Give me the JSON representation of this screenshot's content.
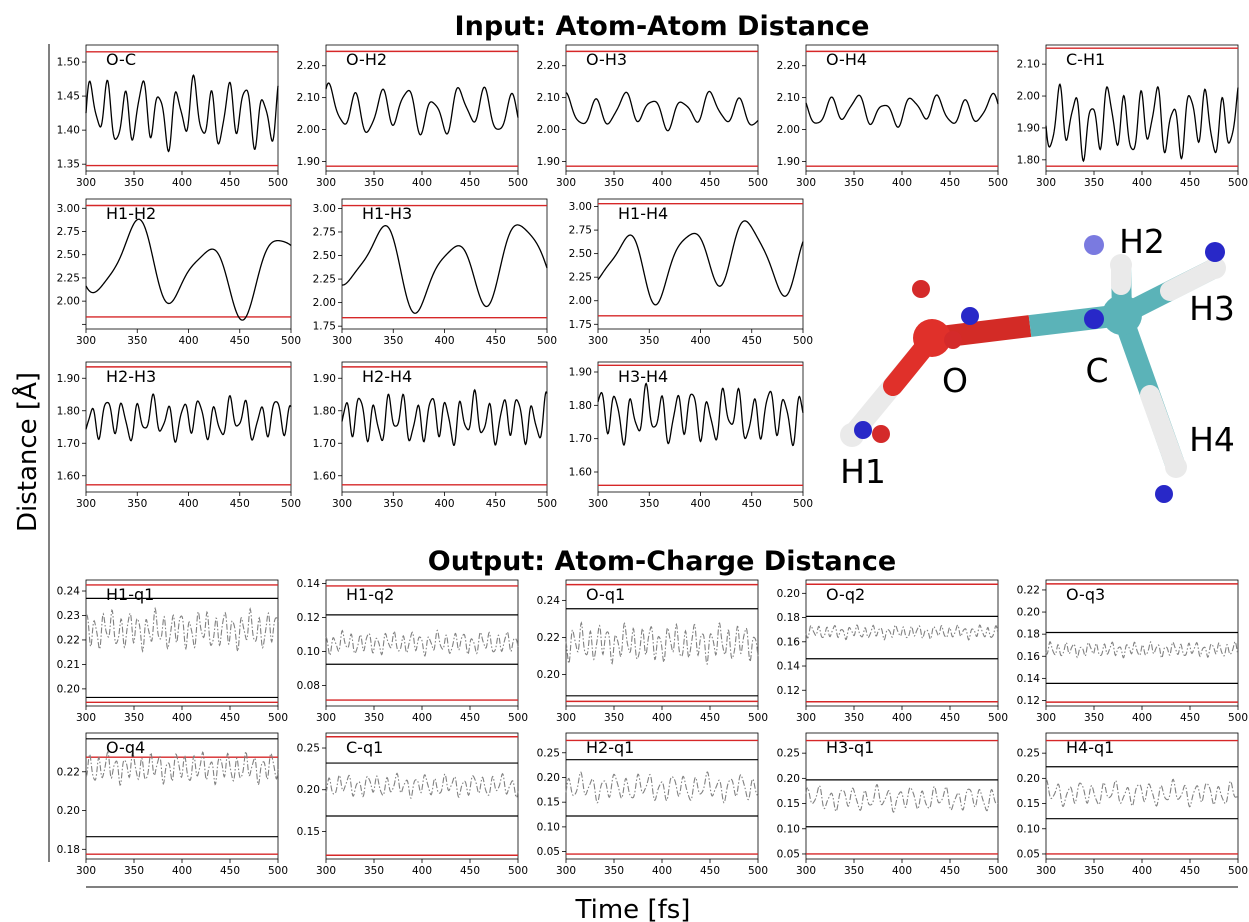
{
  "figure": {
    "input_title": "Input: Atom-Atom Distance",
    "output_title": "Output: Atom-Charge Distance",
    "ylabel": "Distance [Å]",
    "xlabel": "Time [fs]"
  },
  "colors": {
    "signal": "#000000",
    "output_signal": "#808080",
    "bounds_red": "#d62728",
    "bounds_black": "#000000"
  },
  "molecule": {
    "atom_labels": [
      "O",
      "C",
      "H1",
      "H2",
      "H3",
      "H4"
    ],
    "atom_colors": {
      "O": "#e0302a",
      "C": "#5bb3b8",
      "H": "#e8e8e8",
      "charge_blue": "#2828c8",
      "charge_red": "#d42a2a"
    }
  },
  "chart_data": [
    {
      "type": "line",
      "label": "O-C",
      "xlim": [
        300,
        500
      ],
      "ylim": [
        1.34,
        1.525
      ],
      "xticks": [
        300,
        350,
        400,
        450,
        500
      ],
      "yticks": [
        1.35,
        1.4,
        1.45,
        1.5
      ],
      "ytick_labels": [
        "1.35",
        "1.40",
        "1.45",
        "1.50"
      ],
      "red_lines": [
        1.348,
        1.515
      ],
      "black_lines": [],
      "mean": 1.425,
      "amp": 0.045,
      "period": 18,
      "series_style": "solid"
    },
    {
      "type": "line",
      "label": "O-H2",
      "xlim": [
        300,
        500
      ],
      "ylim": [
        1.87,
        2.265
      ],
      "xticks": [
        300,
        350,
        400,
        450,
        500
      ],
      "yticks": [
        1.9,
        2.0,
        2.1,
        2.2
      ],
      "ytick_labels": [
        "1.90",
        "2.00",
        "2.10",
        "2.20"
      ],
      "red_lines": [
        1.885,
        2.245
      ],
      "black_lines": [],
      "mean": 2.06,
      "amp": 0.07,
      "period": 27,
      "series_style": "solid"
    },
    {
      "type": "line",
      "label": "O-H3",
      "xlim": [
        300,
        500
      ],
      "ylim": [
        1.87,
        2.265
      ],
      "xticks": [
        300,
        350,
        400,
        450,
        500
      ],
      "yticks": [
        1.9,
        2.0,
        2.1,
        2.2
      ],
      "ytick_labels": [
        "1.90",
        "2.00",
        "2.10",
        "2.20"
      ],
      "red_lines": [
        1.885,
        2.245
      ],
      "black_lines": [],
      "mean": 2.06,
      "amp": 0.05,
      "period": 30,
      "series_style": "solid"
    },
    {
      "type": "line",
      "label": "O-H4",
      "xlim": [
        300,
        500
      ],
      "ylim": [
        1.87,
        2.265
      ],
      "xticks": [
        300,
        350,
        400,
        450,
        500
      ],
      "yticks": [
        1.9,
        2.0,
        2.1,
        2.2
      ],
      "ytick_labels": [
        "1.90",
        "2.00",
        "2.10",
        "2.20"
      ],
      "red_lines": [
        1.885,
        2.245
      ],
      "black_lines": [],
      "mean": 2.06,
      "amp": 0.045,
      "period": 28,
      "series_style": "solid"
    },
    {
      "type": "line",
      "label": "C-H1",
      "xlim": [
        300,
        500
      ],
      "ylim": [
        1.765,
        2.16
      ],
      "xticks": [
        300,
        350,
        400,
        450,
        500
      ],
      "yticks": [
        1.8,
        1.9,
        2.0,
        2.1
      ],
      "ytick_labels": [
        "1.80",
        "1.90",
        "2.00",
        "2.10"
      ],
      "red_lines": [
        1.78,
        2.15
      ],
      "black_lines": [],
      "mean": 1.92,
      "amp": 0.1,
      "period": 17,
      "series_style": "solid"
    },
    {
      "type": "line",
      "label": "H1-H2",
      "xlim": [
        300,
        500
      ],
      "ylim": [
        1.7,
        3.1
      ],
      "xticks": [
        300,
        350,
        400,
        450,
        500
      ],
      "yticks": [
        1.75,
        2.0,
        2.25,
        2.5,
        2.75,
        3.0
      ],
      "ytick_labels": [
        "",
        "2.00",
        "2.25",
        "2.50",
        "2.75",
        "3.00"
      ],
      "red_lines": [
        1.83,
        3.03
      ],
      "black_lines": [],
      "mean": 2.35,
      "amp": 0.45,
      "period": 70,
      "series_style": "solid"
    },
    {
      "type": "line",
      "label": "H1-H3",
      "xlim": [
        300,
        500
      ],
      "ylim": [
        1.72,
        3.1
      ],
      "xticks": [
        300,
        350,
        400,
        450,
        500
      ],
      "yticks": [
        1.75,
        2.0,
        2.25,
        2.5,
        2.75,
        3.0
      ],
      "ytick_labels": [
        "1.75",
        "2.00",
        "2.25",
        "2.50",
        "2.75",
        "3.00"
      ],
      "red_lines": [
        1.84,
        3.03
      ],
      "black_lines": [],
      "mean": 2.4,
      "amp": 0.45,
      "period": 68,
      "series_style": "solid"
    },
    {
      "type": "line",
      "label": "H1-H4",
      "xlim": [
        300,
        500
      ],
      "ylim": [
        1.7,
        3.08
      ],
      "xticks": [
        300,
        350,
        400,
        450,
        500
      ],
      "yticks": [
        1.75,
        2.0,
        2.25,
        2.5,
        2.75,
        3.0
      ],
      "ytick_labels": [
        "1.75",
        "2.00",
        "2.25",
        "2.50",
        "2.75",
        "3.00"
      ],
      "red_lines": [
        1.84,
        3.03
      ],
      "black_lines": [],
      "mean": 2.45,
      "amp": 0.4,
      "period": 60,
      "series_style": "solid"
    },
    {
      "type": "line",
      "label": "H2-H3",
      "xlim": [
        300,
        500
      ],
      "ylim": [
        1.55,
        1.95
      ],
      "xticks": [
        300,
        350,
        400,
        450,
        500
      ],
      "yticks": [
        1.6,
        1.7,
        1.8,
        1.9
      ],
      "ytick_labels": [
        "1.60",
        "1.70",
        "1.80",
        "1.90"
      ],
      "red_lines": [
        1.572,
        1.935
      ],
      "black_lines": [],
      "mean": 1.775,
      "amp": 0.06,
      "period": 15,
      "series_style": "solid"
    },
    {
      "type": "line",
      "label": "H2-H4",
      "xlim": [
        300,
        500
      ],
      "ylim": [
        1.55,
        1.95
      ],
      "xticks": [
        300,
        350,
        400,
        450,
        500
      ],
      "yticks": [
        1.6,
        1.7,
        1.8,
        1.9
      ],
      "ytick_labels": [
        "1.60",
        "1.70",
        "1.80",
        "1.90"
      ],
      "red_lines": [
        1.572,
        1.935
      ],
      "black_lines": [],
      "mean": 1.775,
      "amp": 0.07,
      "period": 14,
      "series_style": "solid"
    },
    {
      "type": "line",
      "label": "H3-H4",
      "xlim": [
        300,
        500
      ],
      "ylim": [
        1.54,
        1.93
      ],
      "xticks": [
        300,
        350,
        400,
        450,
        500
      ],
      "yticks": [
        1.6,
        1.7,
        1.8,
        1.9
      ],
      "ytick_labels": [
        "1.60",
        "1.70",
        "1.80",
        "1.90"
      ],
      "red_lines": [
        1.56,
        1.92
      ],
      "black_lines": [],
      "mean": 1.77,
      "amp": 0.075,
      "period": 15,
      "series_style": "solid"
    },
    {
      "type": "line",
      "label": "H1-q1",
      "xlim": [
        300,
        500
      ],
      "ylim": [
        0.193,
        0.2445
      ],
      "xticks": [
        300,
        350,
        400,
        450,
        500
      ],
      "yticks": [
        0.2,
        0.21,
        0.22,
        0.23,
        0.24
      ],
      "ytick_labels": [
        "0.20",
        "0.21",
        "0.22",
        "0.23",
        "0.24"
      ],
      "red_lines": [
        0.1945,
        0.2425
      ],
      "black_lines": [
        0.1965,
        0.237
      ],
      "mean": 0.224,
      "amp": 0.007,
      "period": 9,
      "series_style": "dashdot"
    },
    {
      "type": "line",
      "label": "H1-q2",
      "xlim": [
        300,
        500
      ],
      "ylim": [
        0.068,
        0.142
      ],
      "xticks": [
        300,
        350,
        400,
        450,
        500
      ],
      "yticks": [
        0.08,
        0.1,
        0.12,
        0.14
      ],
      "ytick_labels": [
        "0.08",
        "0.10",
        "0.12",
        "0.14"
      ],
      "red_lines": [
        0.0715,
        0.1385
      ],
      "black_lines": [
        0.0925,
        0.1215
      ],
      "mean": 0.105,
      "amp": 0.006,
      "period": 9,
      "series_style": "dashdot"
    },
    {
      "type": "line",
      "label": "O-q1",
      "xlim": [
        300,
        500
      ],
      "ylim": [
        0.183,
        0.251
      ],
      "xticks": [
        300,
        350,
        400,
        450,
        500
      ],
      "yticks": [
        0.2,
        0.22,
        0.24
      ],
      "ytick_labels": [
        "0.20",
        "0.22",
        "0.24"
      ],
      "red_lines": [
        0.1855,
        0.2485
      ],
      "black_lines": [
        0.1885,
        0.2355
      ],
      "mean": 0.217,
      "amp": 0.009,
      "period": 9,
      "series_style": "dashdot"
    },
    {
      "type": "line",
      "label": "O-q2",
      "xlim": [
        300,
        500
      ],
      "ylim": [
        0.107,
        0.211
      ],
      "xticks": [
        300,
        350,
        400,
        450,
        500
      ],
      "yticks": [
        0.12,
        0.14,
        0.16,
        0.18,
        0.2
      ],
      "ytick_labels": [
        "0.12",
        "0.14",
        "0.16",
        "0.18",
        "0.20"
      ],
      "red_lines": [
        0.1105,
        0.2075
      ],
      "black_lines": [
        0.146,
        0.181
      ],
      "mean": 0.168,
      "amp": 0.005,
      "period": 8,
      "series_style": "dashdot"
    },
    {
      "type": "line",
      "label": "O-q3",
      "xlim": [
        300,
        500
      ],
      "ylim": [
        0.115,
        0.229
      ],
      "xticks": [
        300,
        350,
        400,
        450,
        500
      ],
      "yticks": [
        0.12,
        0.14,
        0.16,
        0.18,
        0.2,
        0.22
      ],
      "ytick_labels": [
        "0.12",
        "0.14",
        "0.16",
        "0.18",
        "0.20",
        "0.22"
      ],
      "red_lines": [
        0.1185,
        0.2255
      ],
      "black_lines": [
        0.1355,
        0.1815
      ],
      "mean": 0.166,
      "amp": 0.006,
      "period": 8,
      "series_style": "dashdot"
    },
    {
      "type": "line",
      "label": "O-q4",
      "xlim": [
        300,
        500
      ],
      "ylim": [
        0.175,
        0.24
      ],
      "xticks": [
        300,
        350,
        400,
        450,
        500
      ],
      "yticks": [
        0.18,
        0.2,
        0.22
      ],
      "ytick_labels": [
        "0.18",
        "0.20",
        "0.22"
      ],
      "red_lines": [
        0.1775,
        0.2275
      ],
      "black_lines": [
        0.1865,
        0.237
      ],
      "mean": 0.222,
      "amp": 0.007,
      "period": 9,
      "series_style": "dashdot"
    },
    {
      "type": "line",
      "label": "C-q1",
      "xlim": [
        300,
        500
      ],
      "ylim": [
        0.117,
        0.268
      ],
      "xticks": [
        300,
        350,
        400,
        450,
        500
      ],
      "yticks": [
        0.15,
        0.2,
        0.25
      ],
      "ytick_labels": [
        "0.15",
        "0.20",
        "0.25"
      ],
      "red_lines": [
        0.1215,
        0.2635
      ],
      "black_lines": [
        0.1685,
        0.232
      ],
      "mean": 0.205,
      "amp": 0.012,
      "period": 10,
      "series_style": "dashdot"
    },
    {
      "type": "line",
      "label": "H2-q1",
      "xlim": [
        300,
        500
      ],
      "ylim": [
        0.035,
        0.29
      ],
      "xticks": [
        300,
        350,
        400,
        450,
        500
      ],
      "yticks": [
        0.05,
        0.1,
        0.15,
        0.2,
        0.25
      ],
      "ytick_labels": [
        "0.05",
        "0.10",
        "0.15",
        "0.20",
        "0.25"
      ],
      "red_lines": [
        0.045,
        0.275
      ],
      "black_lines": [
        0.122,
        0.236
      ],
      "mean": 0.18,
      "amp": 0.025,
      "period": 12,
      "series_style": "dashdot"
    },
    {
      "type": "line",
      "label": "H3-q1",
      "xlim": [
        300,
        500
      ],
      "ylim": [
        0.04,
        0.29
      ],
      "xticks": [
        300,
        350,
        400,
        450,
        500
      ],
      "yticks": [
        0.05,
        0.1,
        0.15,
        0.2,
        0.25
      ],
      "ytick_labels": [
        "0.05",
        "0.10",
        "0.15",
        "0.20",
        "0.25"
      ],
      "red_lines": [
        0.05,
        0.275
      ],
      "black_lines": [
        0.104,
        0.197
      ],
      "mean": 0.16,
      "amp": 0.022,
      "period": 12,
      "series_style": "dashdot"
    },
    {
      "type": "line",
      "label": "H4-q1",
      "xlim": [
        300,
        500
      ],
      "ylim": [
        0.04,
        0.29
      ],
      "xticks": [
        300,
        350,
        400,
        450,
        500
      ],
      "yticks": [
        0.05,
        0.1,
        0.15,
        0.2,
        0.25
      ],
      "ytick_labels": [
        "0.05",
        "0.10",
        "0.15",
        "0.20",
        "0.25"
      ],
      "red_lines": [
        0.05,
        0.275
      ],
      "black_lines": [
        0.12,
        0.223
      ],
      "mean": 0.17,
      "amp": 0.022,
      "period": 12,
      "series_style": "dashdot"
    }
  ]
}
